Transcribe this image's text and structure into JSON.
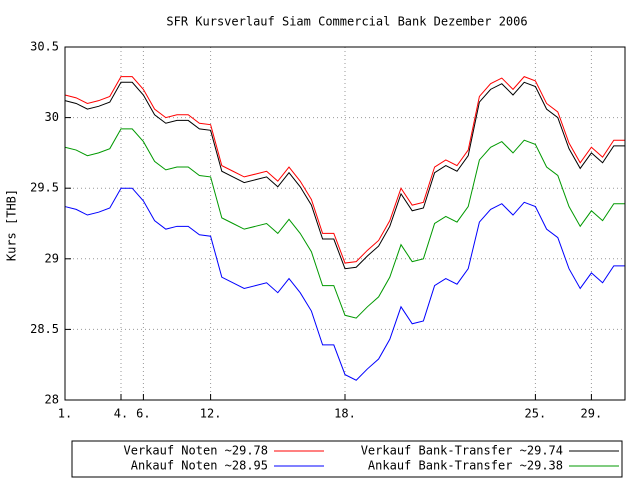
{
  "chart_data": {
    "type": "line",
    "title": "SFR Kursverlauf Siam Commercial Bank Dezember 2006",
    "y_label": "Kurs [THB]",
    "x": [
      0,
      2,
      4,
      6,
      8,
      10,
      12,
      14,
      16,
      18,
      20,
      22,
      24,
      26,
      28,
      30,
      32,
      34,
      36,
      38,
      40,
      42,
      44,
      46,
      48,
      50,
      52,
      54,
      56,
      58,
      60,
      62,
      64,
      66,
      68,
      70,
      72,
      74,
      76,
      78,
      80,
      82,
      84,
      86,
      88,
      90,
      92,
      94,
      96,
      98,
      100
    ],
    "series": [
      {
        "name": "Verkauf Noten ~29.78",
        "color": "#ff0000",
        "values": [
          30.16,
          30.14,
          30.1,
          30.12,
          30.15,
          30.29,
          30.29,
          30.2,
          30.06,
          30.0,
          30.02,
          30.02,
          29.96,
          29.95,
          29.66,
          29.62,
          29.58,
          29.6,
          29.62,
          29.55,
          29.65,
          29.55,
          29.42,
          29.18,
          29.18,
          28.97,
          28.98,
          29.06,
          29.13,
          29.27,
          29.5,
          29.38,
          29.4,
          29.65,
          29.7,
          29.66,
          29.77,
          30.15,
          30.24,
          30.28,
          30.2,
          30.29,
          30.26,
          30.1,
          30.04,
          29.82,
          29.68,
          29.79,
          29.72,
          29.84,
          29.84
        ]
      },
      {
        "name": "Verkauf Bank-Transfer ~29.74",
        "color": "#000000",
        "values": [
          30.12,
          30.1,
          30.06,
          30.08,
          30.11,
          30.25,
          30.25,
          30.16,
          30.02,
          29.96,
          29.98,
          29.98,
          29.92,
          29.91,
          29.62,
          29.58,
          29.54,
          29.56,
          29.58,
          29.51,
          29.61,
          29.51,
          29.38,
          29.14,
          29.14,
          28.93,
          28.94,
          29.02,
          29.09,
          29.23,
          29.46,
          29.34,
          29.36,
          29.61,
          29.66,
          29.62,
          29.73,
          30.11,
          30.2,
          30.24,
          30.16,
          30.25,
          30.22,
          30.06,
          30.0,
          29.78,
          29.64,
          29.75,
          29.68,
          29.8,
          29.8
        ]
      },
      {
        "name": "Ankauf Noten ~28.95",
        "color": "#0000ff",
        "values": [
          29.37,
          29.35,
          29.31,
          29.33,
          29.36,
          29.5,
          29.5,
          29.41,
          29.27,
          29.21,
          29.23,
          29.23,
          29.17,
          29.16,
          28.87,
          28.83,
          28.79,
          28.81,
          28.83,
          28.76,
          28.86,
          28.76,
          28.63,
          28.39,
          28.39,
          28.18,
          28.14,
          28.22,
          28.29,
          28.43,
          28.66,
          28.54,
          28.56,
          28.81,
          28.86,
          28.82,
          28.93,
          29.26,
          29.35,
          29.39,
          29.31,
          29.4,
          29.37,
          29.21,
          29.15,
          28.93,
          28.79,
          28.9,
          28.83,
          28.95,
          28.95
        ]
      },
      {
        "name": "Ankauf Bank-Transfer ~29.38",
        "color": "#009900",
        "values": [
          29.79,
          29.77,
          29.73,
          29.75,
          29.78,
          29.92,
          29.92,
          29.83,
          29.69,
          29.63,
          29.65,
          29.65,
          29.59,
          29.58,
          29.29,
          29.25,
          29.21,
          29.23,
          29.25,
          29.18,
          29.28,
          29.18,
          29.05,
          28.81,
          28.81,
          28.6,
          28.58,
          28.66,
          28.73,
          28.87,
          29.1,
          28.98,
          29.0,
          29.25,
          29.3,
          29.26,
          29.37,
          29.7,
          29.79,
          29.83,
          29.75,
          29.84,
          29.81,
          29.65,
          29.59,
          29.37,
          29.23,
          29.34,
          29.27,
          29.39,
          29.39
        ]
      }
    ],
    "xlim": [
      0,
      100
    ],
    "xticks": [
      {
        "value": 0,
        "label": "1."
      },
      {
        "value": 10,
        "label": "4."
      },
      {
        "value": 14,
        "label": "6."
      },
      {
        "value": 26,
        "label": "12."
      },
      {
        "value": 50,
        "label": "18."
      },
      {
        "value": 84,
        "label": "25."
      },
      {
        "value": 94,
        "label": "29."
      }
    ],
    "ylim": [
      28,
      30.5
    ],
    "yticks": [
      28,
      28.5,
      29,
      29.5,
      30,
      30.5
    ],
    "grid": true,
    "legend": "bottom"
  }
}
